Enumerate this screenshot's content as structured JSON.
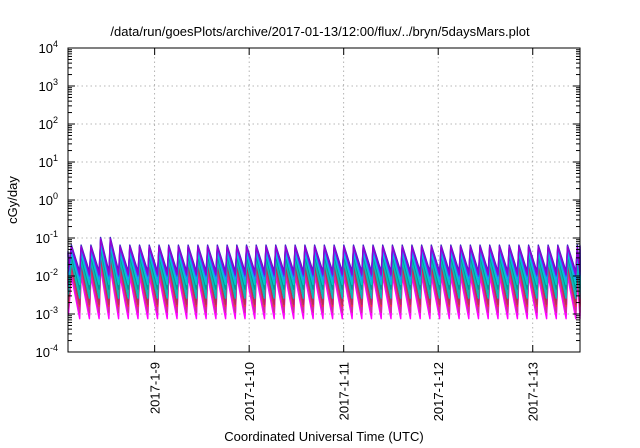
{
  "chart_data": {
    "type": "line",
    "title": "/data/run/goesPlots/archive/2017-01-13/12:00/flux/../bryn/5daysMars.plot",
    "xlabel": "Coordinated Universal Time (UTC)",
    "ylabel": "cGy/day",
    "yscale": "log",
    "ylim": [
      0.0001,
      10000
    ],
    "xlim": [
      "2017-01-08T02:00",
      "2017-01-13T12:00"
    ],
    "grid": true,
    "y_ticks": [
      {
        "base": "10",
        "exp": "-4",
        "value": 0.0001
      },
      {
        "base": "10",
        "exp": "-3",
        "value": 0.001
      },
      {
        "base": "10",
        "exp": "-2",
        "value": 0.01
      },
      {
        "base": "10",
        "exp": "-1",
        "value": 0.1
      },
      {
        "base": "10",
        "exp": "0",
        "value": 1
      },
      {
        "base": "10",
        "exp": "1",
        "value": 10
      },
      {
        "base": "10",
        "exp": "2",
        "value": 100
      },
      {
        "base": "10",
        "exp": "3",
        "value": 1000
      },
      {
        "base": "10",
        "exp": "4",
        "value": 10000
      }
    ],
    "x_ticks": [
      {
        "label": "2017-1-9",
        "date": "2017-01-09T00:00"
      },
      {
        "label": "2017-1-10",
        "date": "2017-01-10T00:00"
      },
      {
        "label": "2017-1-11",
        "date": "2017-01-11T00:00"
      },
      {
        "label": "2017-1-12",
        "date": "2017-01-12T00:00"
      },
      {
        "label": "2017-1-13",
        "date": "2017-01-13T00:00"
      }
    ],
    "cycle_hours": 2.47,
    "series": [
      {
        "color": "#ff00ff",
        "peak": 0.01,
        "trough": 0.00075
      },
      {
        "color": "#ff00ff",
        "peak": 0.012,
        "trough": 0.0009
      },
      {
        "color": "#cc3399",
        "peak": 0.014,
        "trough": 0.0011
      },
      {
        "color": "#ff3030",
        "peak": 0.018,
        "trough": 0.0016
      },
      {
        "color": "#b03060",
        "peak": 0.02,
        "trough": 0.0018
      },
      {
        "color": "#00bfbf",
        "peak": 0.025,
        "trough": 0.0026
      },
      {
        "color": "#20b2aa",
        "peak": 0.03,
        "trough": 0.0035
      },
      {
        "color": "#009999",
        "peak": 0.034,
        "trough": 0.0045
      },
      {
        "color": "#00cccc",
        "peak": 0.04,
        "trough": 0.006
      },
      {
        "color": "#1e90ff",
        "peak": 0.05,
        "trough": 0.008
      },
      {
        "color": "#4040ff",
        "peak": 0.058,
        "trough": 0.01
      },
      {
        "color": "#3030c0",
        "peak": 0.065,
        "trough": 0.013
      },
      {
        "color": "#9400d3",
        "peak": 0.06,
        "trough": 0.011
      }
    ]
  }
}
